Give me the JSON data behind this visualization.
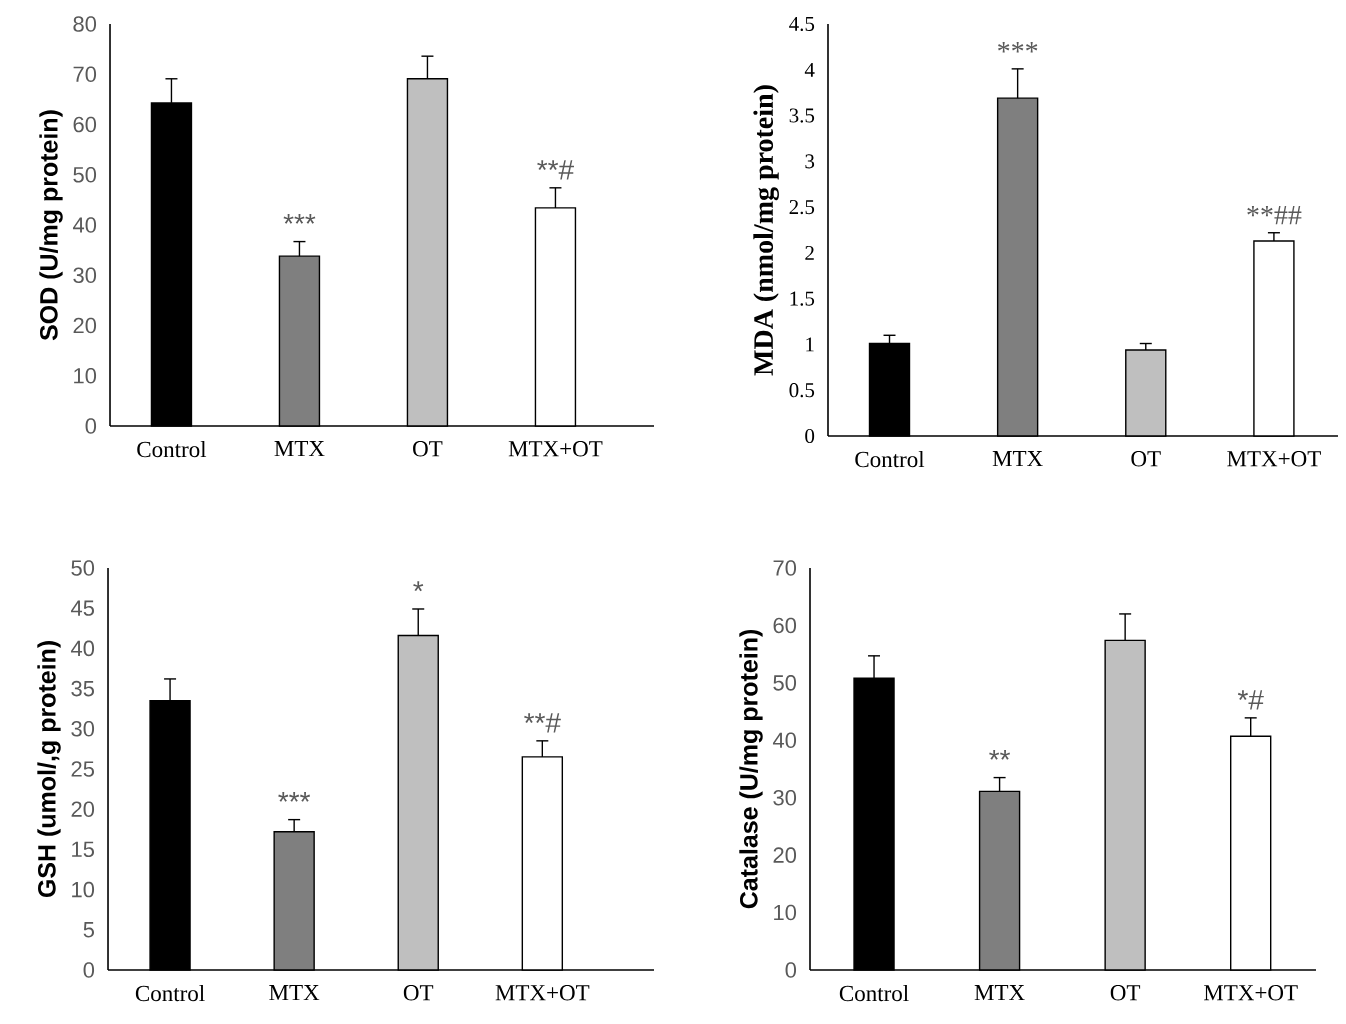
{
  "chart_data": [
    {
      "type": "bar",
      "categories": [
        "Control",
        "MTX",
        "OT",
        "MTX+OT"
      ],
      "values": [
        64.3,
        33.8,
        69.1,
        43.4
      ],
      "errors": [
        4.8,
        2.9,
        4.5,
        4.0
      ],
      "colors": [
        "#000000",
        "#7f7f7f",
        "#bfbfbf",
        "#ffffff"
      ],
      "ylabel": "SOD (U/mg protein)",
      "ylim": [
        0,
        80
      ],
      "yticks": [
        0,
        10,
        20,
        30,
        40,
        50,
        60,
        70,
        80
      ],
      "annotations": [
        {
          "text": "***",
          "x": "MTX",
          "y": 33.8
        },
        {
          "text": "**#",
          "x": "MTX+OT",
          "y": 43.4
        }
      ]
    },
    {
      "type": "bar",
      "categories": [
        "Control",
        "MTX",
        "OT",
        "MTX+OT"
      ],
      "values": [
        1.01,
        3.69,
        0.94,
        2.13
      ],
      "errors": [
        0.09,
        0.32,
        0.07,
        0.09
      ],
      "colors": [
        "#000000",
        "#7f7f7f",
        "#bfbfbf",
        "#ffffff"
      ],
      "ylabel": "MDA (nmol/mg protein)",
      "ylim": [
        0,
        4.5
      ],
      "yticks": [
        0,
        0.5,
        1,
        1.5,
        2,
        2.5,
        3,
        3.5,
        4,
        4.5
      ],
      "annotations": [
        {
          "text": "***",
          "x": "MTX",
          "y": 3.69
        },
        {
          "text": "**##",
          "x": "MTX+OT",
          "y": 2.13
        }
      ]
    },
    {
      "type": "bar",
      "categories": [
        "Control",
        "MTX",
        "OT",
        "MTX+OT"
      ],
      "values": [
        33.5,
        17.2,
        41.6,
        26.5
      ],
      "errors": [
        2.7,
        1.5,
        3.3,
        2.0
      ],
      "colors": [
        "#000000",
        "#7f7f7f",
        "#bfbfbf",
        "#ffffff"
      ],
      "ylabel": "GSH (umol/,g protein)",
      "ylim": [
        0,
        50
      ],
      "yticks": [
        0,
        5,
        10,
        15,
        20,
        25,
        30,
        35,
        40,
        45,
        50
      ],
      "annotations": [
        {
          "text": "***",
          "x": "MTX",
          "y": 17.2
        },
        {
          "text": "*",
          "x": "OT",
          "y": 41.6
        },
        {
          "text": "**#",
          "x": "MTX+OT",
          "y": 26.5
        }
      ]
    },
    {
      "type": "bar",
      "categories": [
        "Control",
        "MTX",
        "OT",
        "MTX+OT"
      ],
      "values": [
        50.8,
        31.1,
        57.4,
        40.7
      ],
      "errors": [
        3.9,
        2.4,
        4.6,
        3.2
      ],
      "colors": [
        "#000000",
        "#7f7f7f",
        "#bfbfbf",
        "#ffffff"
      ],
      "ylabel": "Catalase (U/mg protein)",
      "ylim": [
        0,
        70
      ],
      "yticks": [
        0,
        10,
        20,
        30,
        40,
        50,
        60,
        70
      ],
      "annotations": [
        {
          "text": "**",
          "x": "MTX",
          "y": 31.1
        },
        {
          "text": "*#",
          "x": "MTX+OT",
          "y": 40.7
        }
      ]
    }
  ]
}
